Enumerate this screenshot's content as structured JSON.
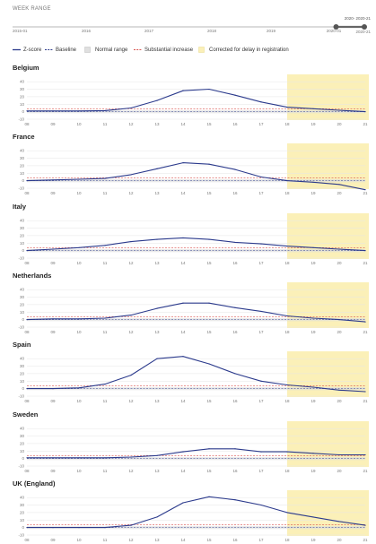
{
  "header": {
    "week_range_label": "WEEK RANGE"
  },
  "slider": {
    "year_labels": [
      "2015-01",
      "2016",
      "2017",
      "2018",
      "2019",
      "2020-01"
    ],
    "selected_range_label": "2020- 2020-21",
    "end_label": "2020-21",
    "selected_start_fraction": 0.915,
    "selected_end_fraction": 1.0
  },
  "legend": {
    "items": [
      {
        "label": "Z-score",
        "icon": "solid-line",
        "color": "#2b3a8c"
      },
      {
        "label": "Baseline",
        "icon": "dashed-line",
        "color": "#2b3a8c"
      },
      {
        "label": "Normal range",
        "icon": "grey-box",
        "color": "#e0e0e0"
      },
      {
        "label": "Substantial increase",
        "icon": "dashed-line",
        "color": "#d9534f"
      },
      {
        "label": "Corrected for delay in registration",
        "icon": "yellow-box",
        "color": "#fbf0b8"
      }
    ]
  },
  "colors": {
    "zscore": "#2b3a8c",
    "baseline": "#2b3a8c",
    "normal_range": "#dcdcdc",
    "substantial_increase": "#d9534f",
    "corrected": "#fbf0b8",
    "grid": "#e6e6e6"
  },
  "chart_data": [
    {
      "type": "line",
      "title": "Belgium",
      "x": [
        "08",
        "09",
        "10",
        "11",
        "12",
        "13",
        "14",
        "15",
        "16",
        "17",
        "18",
        "19",
        "20",
        "21"
      ],
      "yticks": [
        40,
        30,
        20,
        10,
        0,
        -10
      ],
      "ylim": [
        -10,
        45
      ],
      "series": [
        {
          "name": "Z-score",
          "values": [
            1,
            1,
            1,
            1.5,
            5,
            15,
            28,
            30,
            22,
            13,
            6,
            4,
            2,
            0
          ]
        }
      ],
      "baseline": 0,
      "substantial_increase": 4,
      "corrected_from": "18"
    },
    {
      "type": "line",
      "title": "France",
      "x": [
        "08",
        "09",
        "10",
        "11",
        "12",
        "13",
        "14",
        "15",
        "16",
        "17",
        "18",
        "19",
        "20",
        "21"
      ],
      "yticks": [
        40,
        30,
        20,
        10,
        0,
        -10
      ],
      "ylim": [
        -10,
        45
      ],
      "series": [
        {
          "name": "Z-score",
          "values": [
            0,
            1,
            2,
            3,
            8,
            16,
            24,
            22,
            15,
            5,
            0,
            -2,
            -5,
            -12
          ]
        }
      ],
      "baseline": 0,
      "substantial_increase": 4,
      "corrected_from": "18"
    },
    {
      "type": "line",
      "title": "Italy",
      "x": [
        "08",
        "09",
        "10",
        "11",
        "12",
        "13",
        "14",
        "15",
        "16",
        "17",
        "18",
        "19",
        "20",
        "21"
      ],
      "yticks": [
        40,
        30,
        20,
        10,
        0,
        -10
      ],
      "ylim": [
        -10,
        45
      ],
      "series": [
        {
          "name": "Z-score",
          "values": [
            0,
            2,
            4,
            7,
            12,
            15,
            17,
            15,
            11,
            9,
            6,
            4,
            2,
            0
          ]
        }
      ],
      "baseline": 0,
      "substantial_increase": 4,
      "corrected_from": "18"
    },
    {
      "type": "line",
      "title": "Netherlands",
      "x": [
        "08",
        "09",
        "10",
        "11",
        "12",
        "13",
        "14",
        "15",
        "16",
        "17",
        "18",
        "19",
        "20",
        "21"
      ],
      "yticks": [
        40,
        30,
        20,
        10,
        0,
        -10
      ],
      "ylim": [
        -10,
        45
      ],
      "series": [
        {
          "name": "Z-score",
          "values": [
            0,
            1,
            1,
            2,
            6,
            15,
            22,
            22,
            16,
            11,
            5,
            2,
            0,
            -3
          ]
        }
      ],
      "baseline": 0,
      "substantial_increase": 4,
      "corrected_from": "18"
    },
    {
      "type": "line",
      "title": "Spain",
      "x": [
        "08",
        "09",
        "10",
        "11",
        "12",
        "13",
        "14",
        "15",
        "16",
        "17",
        "18",
        "19",
        "20",
        "21"
      ],
      "yticks": [
        40,
        30,
        20,
        10,
        0,
        -10
      ],
      "ylim": [
        -10,
        45
      ],
      "series": [
        {
          "name": "Z-score",
          "values": [
            0,
            0,
            1,
            6,
            18,
            40,
            43,
            33,
            20,
            10,
            5,
            2,
            -2,
            -4
          ]
        }
      ],
      "baseline": 0,
      "substantial_increase": 4,
      "corrected_from": "18"
    },
    {
      "type": "line",
      "title": "Sweden",
      "x": [
        "08",
        "09",
        "10",
        "11",
        "12",
        "13",
        "14",
        "15",
        "16",
        "17",
        "18",
        "19",
        "20",
        "21"
      ],
      "yticks": [
        40,
        30,
        20,
        10,
        0,
        -10
      ],
      "ylim": [
        -10,
        45
      ],
      "series": [
        {
          "name": "Z-score",
          "values": [
            1,
            1,
            1,
            1,
            2,
            4,
            9,
            13,
            13,
            9,
            9,
            7,
            5,
            5
          ]
        }
      ],
      "baseline": 0,
      "substantial_increase": 4,
      "corrected_from": "18"
    },
    {
      "type": "line",
      "title": "UK (England)",
      "x": [
        "08",
        "09",
        "10",
        "11",
        "12",
        "13",
        "14",
        "15",
        "16",
        "17",
        "18",
        "19",
        "20",
        "21"
      ],
      "yticks": [
        40,
        30,
        20,
        10,
        0,
        -10
      ],
      "ylim": [
        -10,
        45
      ],
      "series": [
        {
          "name": "Z-score",
          "values": [
            0,
            0,
            0,
            0,
            3,
            14,
            33,
            41,
            37,
            30,
            20,
            14,
            8,
            3
          ]
        }
      ],
      "baseline": 0,
      "substantial_increase": 4,
      "corrected_from": "18"
    }
  ]
}
